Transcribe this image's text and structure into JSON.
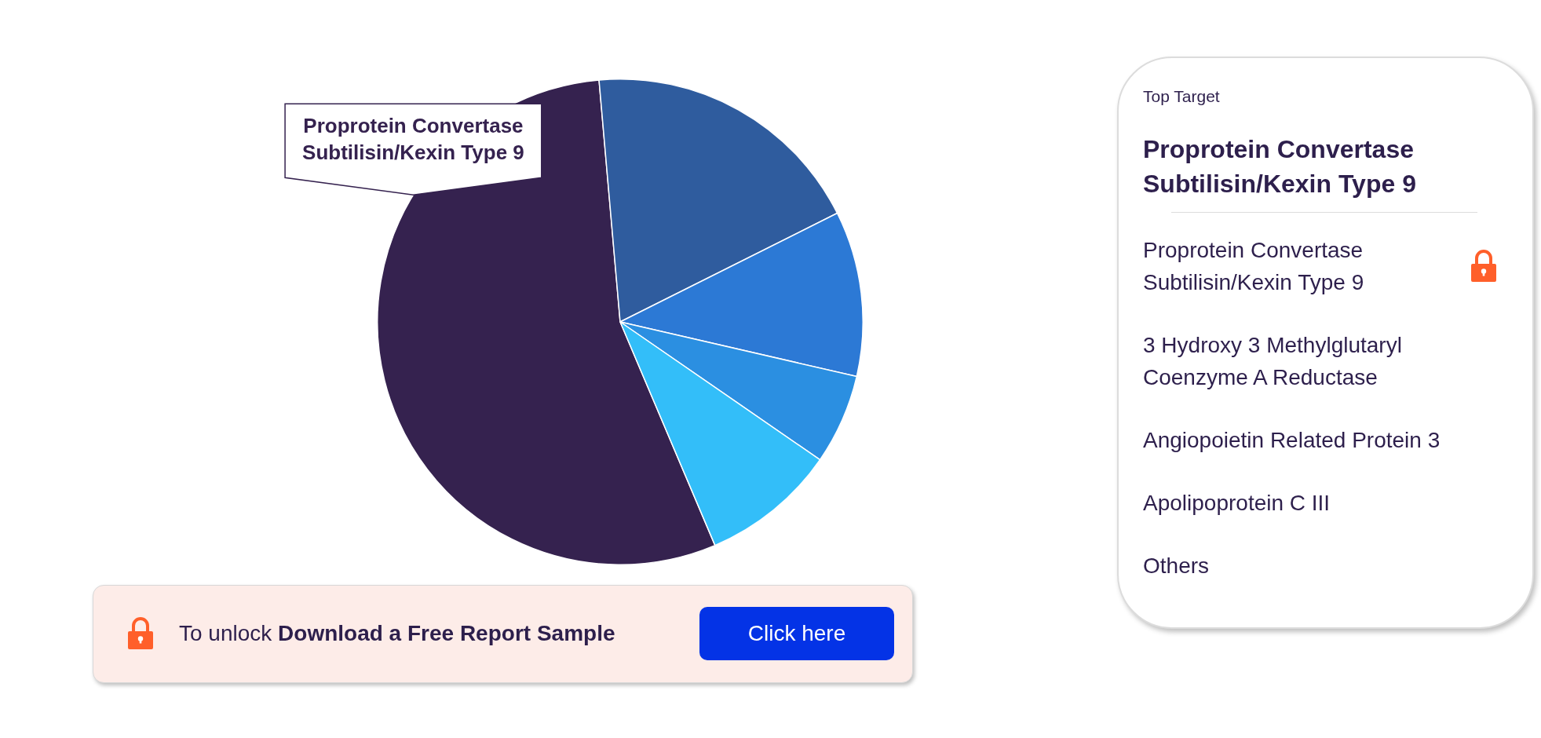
{
  "chart_data": {
    "type": "pie",
    "categories": [
      "Proprotein Convertase Subtilisin/Kexin Type 9",
      null,
      null,
      null,
      null
    ],
    "values": [
      55,
      19,
      11,
      6,
      9
    ],
    "colors": [
      "#35224f",
      "#2f5c9e",
      "#2c79d5",
      "#2b8fe1",
      "#33bef9"
    ],
    "annotations": [
      "Top Target",
      "Proprotein Convertase Subtilisin/Kexin Type 9",
      "Proprotein Convertase Subtilisin/Kexin Type 9",
      "3 Hydroxy 3 Methylglutaryl Coenzyme A Reductase",
      "Angiopoietin Related Protein 3",
      "Apolipoprotein C III",
      "Others",
      "To unlock",
      "Download a Free Report Sample",
      "Click here"
    ]
  }
}
